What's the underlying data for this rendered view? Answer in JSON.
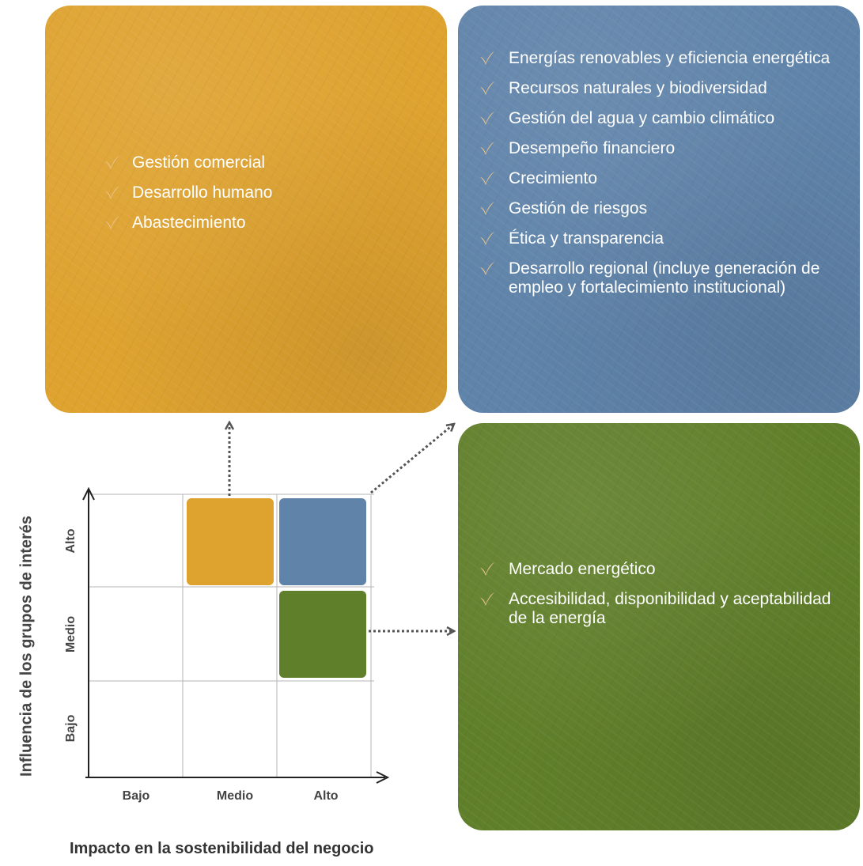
{
  "axes": {
    "y_title": "Influencia de los grupos de interés",
    "x_title": "Impacto en la sostenibilidad del negocio",
    "y_levels": [
      "Alto",
      "Medio",
      "Bajo"
    ],
    "x_levels": [
      "Bajo",
      "Medio",
      "Alto"
    ]
  },
  "colors": {
    "yellow": "#dea22f",
    "blue": "#5f83a9",
    "green": "#607f2a",
    "check": "#e8c08a"
  },
  "panels": {
    "yellow": {
      "items": [
        "Gestión comercial",
        "Desarrollo humano",
        "Abastecimiento"
      ]
    },
    "blue": {
      "items": [
        "Energías renovables y eficiencia energética",
        "Recursos naturales y biodiversidad",
        "Gestión del agua y cambio climático",
        "Desempeño financiero",
        "Crecimiento",
        "Gestión de riesgos",
        "Ética y transparencia",
        "Desarrollo regional (incluye generación de empleo y fortalecimiento institucional)"
      ]
    },
    "green": {
      "items": [
        "Mercado energético",
        "Accesibilidad, disponibilidad y aceptabilidad de la energía"
      ]
    }
  }
}
